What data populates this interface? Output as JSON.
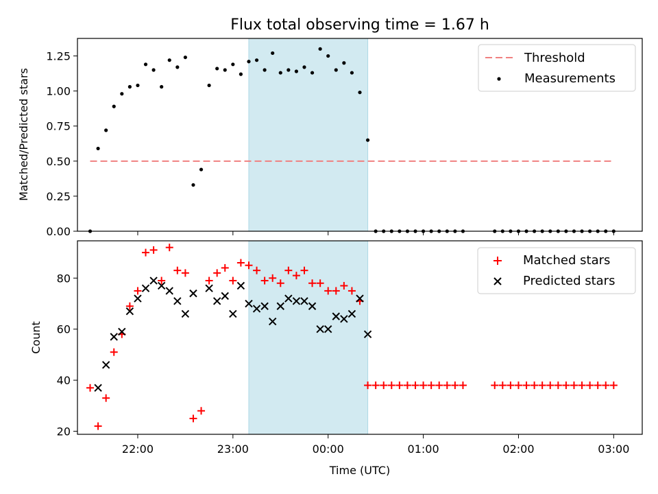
{
  "figure": {
    "title": "Flux total observing time = 1.67 h",
    "xlabel": "Time (UTC)",
    "x_ticks": [
      "22:00",
      "23:00",
      "00:00",
      "01:00",
      "02:00",
      "03:00"
    ]
  },
  "colors": {
    "threshold": "#f08080",
    "measurements": "#000000",
    "matched": "#ff0000",
    "predicted": "#000000",
    "observing_span": "#add8e6"
  },
  "chart_data": [
    {
      "type": "scatter",
      "panel": "top",
      "ylabel": "Matched/Predicted stars",
      "ylim": [
        0,
        1.375
      ],
      "y_ticks": [
        "0.00",
        "0.25",
        "0.50",
        "0.75",
        "1.00",
        "1.25"
      ],
      "x_range": [
        "21:22",
        "03:18"
      ],
      "highlight_span": [
        "23:10",
        "00:25"
      ],
      "legend_position": "top-right",
      "threshold": {
        "name": "Threshold",
        "style": "dashed",
        "x": [
          "21:30",
          "03:00"
        ],
        "y": 0.5
      },
      "series": [
        {
          "name": "Measurements",
          "marker": "dot",
          "x": [
            "21:30",
            "21:35",
            "21:40",
            "21:45",
            "21:50",
            "21:55",
            "22:00",
            "22:05",
            "22:10",
            "22:15",
            "22:20",
            "22:25",
            "22:30",
            "22:35",
            "22:40",
            "22:45",
            "22:50",
            "22:55",
            "23:00",
            "23:05",
            "23:10",
            "23:15",
            "23:20",
            "23:25",
            "23:30",
            "23:35",
            "23:40",
            "23:45",
            "23:50",
            "23:55",
            "00:00",
            "00:05",
            "00:10",
            "00:15",
            "00:20",
            "00:25",
            "00:30",
            "00:35",
            "00:40",
            "00:45",
            "00:50",
            "00:55",
            "01:00",
            "01:05",
            "01:10",
            "01:15",
            "01:20",
            "01:25",
            "01:45",
            "01:50",
            "01:55",
            "02:00",
            "02:05",
            "02:10",
            "02:15",
            "02:20",
            "02:25",
            "02:30",
            "02:35",
            "02:40",
            "02:45",
            "02:50",
            "02:55",
            "03:00"
          ],
          "y": [
            0.0,
            0.59,
            0.72,
            0.89,
            0.98,
            1.03,
            1.04,
            1.19,
            1.15,
            1.03,
            1.22,
            1.17,
            1.24,
            0.33,
            0.44,
            1.04,
            1.16,
            1.15,
            1.19,
            1.12,
            1.21,
            1.22,
            1.15,
            1.27,
            1.13,
            1.15,
            1.14,
            1.17,
            1.13,
            1.3,
            1.25,
            1.15,
            1.2,
            1.13,
            0.99,
            0.65,
            0,
            0,
            0,
            0,
            0,
            0,
            0,
            0,
            0,
            0,
            0,
            0,
            0,
            0,
            0,
            0,
            0,
            0,
            0,
            0,
            0,
            0,
            0,
            0,
            0,
            0,
            0,
            0
          ]
        }
      ]
    },
    {
      "type": "scatter",
      "panel": "bottom",
      "ylabel": "Count",
      "ylim": [
        18.8,
        94.6
      ],
      "y_ticks": [
        "20",
        "40",
        "60",
        "80"
      ],
      "x_range": [
        "21:22",
        "03:18"
      ],
      "highlight_span": [
        "23:10",
        "00:25"
      ],
      "legend_position": "top-right",
      "series": [
        {
          "name": "Matched stars",
          "marker": "plus",
          "x": [
            "21:30",
            "21:35",
            "21:40",
            "21:45",
            "21:50",
            "21:55",
            "22:00",
            "22:05",
            "22:10",
            "22:15",
            "22:20",
            "22:25",
            "22:30",
            "22:35",
            "22:40",
            "22:45",
            "22:50",
            "22:55",
            "23:00",
            "23:05",
            "23:10",
            "23:15",
            "23:20",
            "23:25",
            "23:30",
            "23:35",
            "23:40",
            "23:45",
            "23:50",
            "23:55",
            "00:00",
            "00:05",
            "00:10",
            "00:15",
            "00:20",
            "00:25",
            "00:30",
            "00:35",
            "00:40",
            "00:45",
            "00:50",
            "00:55",
            "01:00",
            "01:05",
            "01:10",
            "01:15",
            "01:20",
            "01:25",
            "01:45",
            "01:50",
            "01:55",
            "02:00",
            "02:05",
            "02:10",
            "02:15",
            "02:20",
            "02:25",
            "02:30",
            "02:35",
            "02:40",
            "02:45",
            "02:50",
            "02:55",
            "03:00"
          ],
          "y": [
            37,
            22,
            33,
            51,
            58,
            69,
            75,
            90,
            91,
            79,
            92,
            83,
            82,
            25,
            28,
            79,
            82,
            84,
            79,
            86,
            85,
            83,
            79,
            80,
            78,
            83,
            81,
            83,
            78,
            78,
            75,
            75,
            77,
            75,
            71,
            38,
            38,
            38,
            38,
            38,
            38,
            38,
            38,
            38,
            38,
            38,
            38,
            38,
            38,
            38,
            38,
            38,
            38,
            38,
            38,
            38,
            38,
            38,
            38,
            38,
            38,
            38,
            38,
            38
          ]
        },
        {
          "name": "Predicted stars",
          "marker": "x",
          "x": [
            "21:35",
            "21:40",
            "21:45",
            "21:50",
            "21:55",
            "22:00",
            "22:05",
            "22:10",
            "22:15",
            "22:20",
            "22:25",
            "22:30",
            "22:35",
            "22:45",
            "22:50",
            "22:55",
            "23:00",
            "23:05",
            "23:10",
            "23:15",
            "23:20",
            "23:25",
            "23:30",
            "23:35",
            "23:40",
            "23:45",
            "23:50",
            "23:55",
            "00:00",
            "00:05",
            "00:10",
            "00:15",
            "00:20",
            "00:25"
          ],
          "y": [
            37,
            46,
            57,
            59,
            67,
            72,
            76,
            79,
            77,
            75,
            71,
            66,
            74,
            76,
            71,
            73,
            66,
            77,
            70,
            68,
            69,
            63,
            69,
            72,
            71,
            71,
            69,
            60,
            60,
            65,
            64,
            66,
            72,
            58
          ]
        }
      ]
    }
  ]
}
